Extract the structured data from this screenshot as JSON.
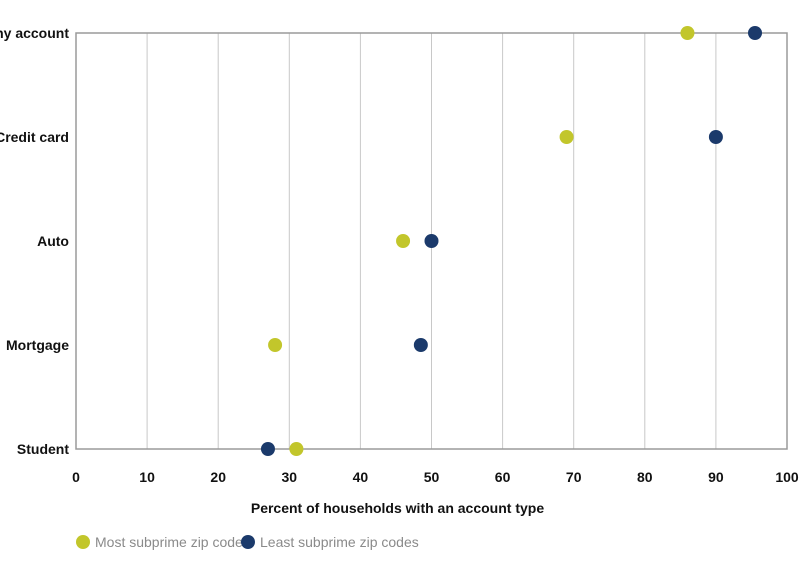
{
  "chart_data": {
    "type": "scatter",
    "title": "",
    "xlabel": "Percent of households with an account type",
    "ylabel": "",
    "xlim": [
      0,
      100
    ],
    "xticks": [
      0,
      10,
      20,
      30,
      40,
      50,
      60,
      70,
      80,
      90,
      100
    ],
    "grid": true,
    "legend_position": "bottom-left",
    "categories": [
      "Any account",
      "Credit card",
      "Auto",
      "Mortgage",
      "Student"
    ],
    "series": [
      {
        "name": "Most subprime zip codes",
        "color": "#c2c62b",
        "values": [
          86,
          69,
          46,
          28,
          31
        ]
      },
      {
        "name": "Least subprime zip codes",
        "color": "#1b3a6b",
        "values": [
          95.5,
          90,
          50,
          48.5,
          27
        ]
      }
    ]
  }
}
